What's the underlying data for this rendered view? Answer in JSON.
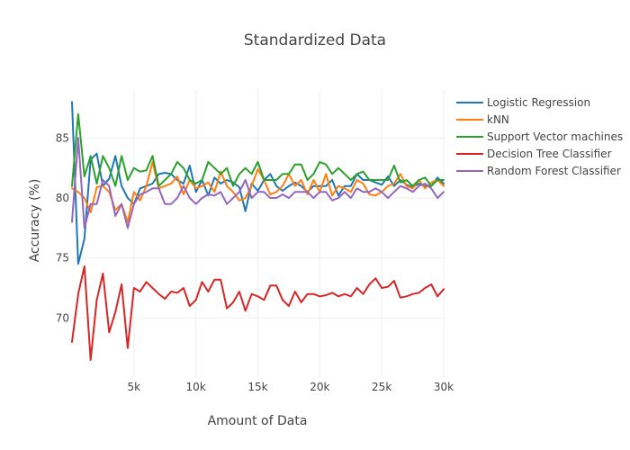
{
  "chart_data": {
    "type": "line",
    "title": "Standardized Data",
    "xlabel": "Amount of Data",
    "ylabel": "Accuracy (%)",
    "xlim": [
      0,
      30000
    ],
    "ylim": [
      65,
      89
    ],
    "x_ticks": [
      5000,
      10000,
      15000,
      20000,
      25000,
      30000
    ],
    "x_tick_labels": [
      "5k",
      "10k",
      "15k",
      "20k",
      "25k",
      "30k"
    ],
    "y_ticks": [
      70,
      75,
      80,
      85
    ],
    "y_tick_labels": [
      "70",
      "75",
      "80",
      "85"
    ],
    "grid": true,
    "legend_position": "top-right",
    "x": [
      0,
      500,
      1000,
      1500,
      2000,
      2500,
      3000,
      3500,
      4000,
      4500,
      5000,
      5500,
      6000,
      6500,
      7000,
      7500,
      8000,
      8500,
      9000,
      9500,
      10000,
      10500,
      11000,
      11500,
      12000,
      12500,
      13000,
      13500,
      14000,
      14500,
      15000,
      15500,
      16000,
      16500,
      17000,
      17500,
      18000,
      18500,
      19000,
      19500,
      20000,
      20500,
      21000,
      21500,
      22000,
      22500,
      23000,
      23500,
      24000,
      24500,
      25000,
      25500,
      26000,
      26500,
      27000,
      27500,
      28000,
      28500,
      29000,
      29500,
      30000
    ],
    "series": [
      {
        "name": "Logistic Regression",
        "color": "#1f77b4",
        "values": [
          88.0,
          74.5,
          76.6,
          83.2,
          83.7,
          81.0,
          81.6,
          83.5,
          81.0,
          80.0,
          79.5,
          80.8,
          81.0,
          81.2,
          82.0,
          82.1,
          82.0,
          81.5,
          81.2,
          82.7,
          80.5,
          81.5,
          80.2,
          81.7,
          81.2,
          81.5,
          81.3,
          80.9,
          78.9,
          81.2,
          80.6,
          81.5,
          82.0,
          81.0,
          80.6,
          81.0,
          81.3,
          81.0,
          80.5,
          81.0,
          81.0,
          81.0,
          81.5,
          80.2,
          81.0,
          81.0,
          82.0,
          81.5,
          81.5,
          81.3,
          81.1,
          81.8,
          81.0,
          81.5,
          81.1,
          80.9,
          81.2,
          81.0,
          81.0,
          81.7,
          81.2
        ]
      },
      {
        "name": "kNN",
        "color": "#ff7f0e",
        "values": [
          80.8,
          80.5,
          80.0,
          78.8,
          80.9,
          81.0,
          80.5,
          79.0,
          79.5,
          78.0,
          80.5,
          79.8,
          81.0,
          83.0,
          80.8,
          81.0,
          81.2,
          81.8,
          80.3,
          81.5,
          80.8,
          81.0,
          81.3,
          80.5,
          82.2,
          81.0,
          80.5,
          79.8,
          80.0,
          81.0,
          82.4,
          81.5,
          80.3,
          80.5,
          81.0,
          82.0,
          81.0,
          81.5,
          80.3,
          81.5,
          80.5,
          82.0,
          80.2,
          81.0,
          80.8,
          80.5,
          81.5,
          81.2,
          80.3,
          80.2,
          80.5,
          81.0,
          81.2,
          82.0,
          81.0,
          80.8,
          81.5,
          80.8,
          81.3,
          81.5,
          81.0
        ]
      },
      {
        "name": "Support Vector machines",
        "color": "#2ca02c",
        "values": [
          81.0,
          87.0,
          81.8,
          83.5,
          81.2,
          83.5,
          82.5,
          81.0,
          83.5,
          81.5,
          82.5,
          82.2,
          82.3,
          83.5,
          81.0,
          81.5,
          82.0,
          83.0,
          82.5,
          81.5,
          81.2,
          81.5,
          83.0,
          82.5,
          82.0,
          82.5,
          81.0,
          82.0,
          82.5,
          82.0,
          83.0,
          81.5,
          81.5,
          81.5,
          82.0,
          82.0,
          82.8,
          82.8,
          81.5,
          82.0,
          83.0,
          82.8,
          82.0,
          82.5,
          82.0,
          81.5,
          82.0,
          82.2,
          81.5,
          81.5,
          81.5,
          81.5,
          82.7,
          81.3,
          81.5,
          81.0,
          81.5,
          81.7,
          81.0,
          81.5,
          81.5
        ]
      },
      {
        "name": "Decision Tree Classifier",
        "color": "#d62728",
        "values": [
          68.0,
          72.0,
          74.3,
          66.5,
          71.5,
          73.7,
          68.8,
          70.5,
          72.8,
          67.5,
          72.5,
          72.2,
          73.0,
          72.5,
          72.0,
          71.6,
          72.2,
          72.1,
          72.5,
          71.0,
          71.5,
          73.0,
          72.2,
          73.2,
          73.2,
          70.8,
          71.3,
          72.2,
          70.6,
          72.0,
          71.8,
          71.5,
          72.7,
          72.7,
          71.5,
          71.0,
          72.2,
          71.3,
          72.0,
          72.0,
          71.8,
          71.9,
          72.1,
          71.8,
          72.0,
          71.8,
          72.5,
          72.0,
          72.8,
          73.3,
          72.5,
          72.6,
          73.1,
          71.7,
          71.8,
          72.0,
          72.1,
          72.5,
          72.8,
          71.8,
          72.4
        ]
      },
      {
        "name": "Random Forest Classifier",
        "color": "#9467bd",
        "values": [
          78.0,
          85.0,
          77.5,
          79.5,
          79.5,
          81.5,
          81.0,
          78.5,
          79.5,
          77.5,
          79.5,
          80.3,
          80.5,
          80.8,
          80.8,
          79.5,
          79.5,
          80.0,
          81.0,
          80.0,
          79.5,
          80.0,
          80.3,
          80.2,
          80.5,
          79.5,
          80.0,
          80.5,
          81.5,
          80.0,
          80.5,
          80.5,
          80.0,
          80.0,
          80.3,
          80.0,
          80.5,
          80.5,
          80.5,
          80.0,
          80.5,
          80.5,
          79.8,
          80.0,
          80.5,
          80.0,
          80.8,
          80.5,
          80.5,
          80.8,
          80.5,
          80.0,
          80.5,
          81.0,
          80.8,
          80.5,
          81.0,
          81.2,
          80.8,
          80.0,
          80.5
        ]
      }
    ]
  }
}
